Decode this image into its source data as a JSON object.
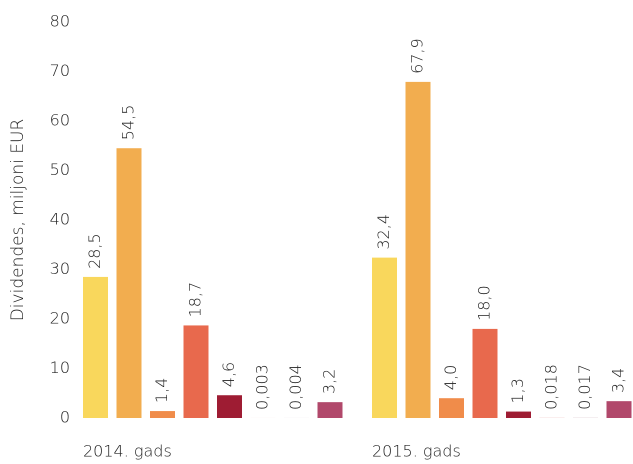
{
  "chart_data": {
    "type": "bar",
    "ylabel": "Dividendes, miljoni EUR",
    "categories": [
      "2014. gads",
      "2015. gads"
    ],
    "series": [
      {
        "color": "#f9d75c",
        "values": [
          28.5,
          32.4
        ],
        "value_labels": [
          "28,5",
          "32,4"
        ]
      },
      {
        "color": "#f2ad4f",
        "values": [
          54.5,
          67.9
        ],
        "value_labels": [
          "54,5",
          "67,9"
        ]
      },
      {
        "color": "#f08c4a",
        "values": [
          1.4,
          4.0
        ],
        "value_labels": [
          "1,4",
          "4,0"
        ]
      },
      {
        "color": "#e8694d",
        "values": [
          18.7,
          18.0
        ],
        "value_labels": [
          "18,7",
          "18,0"
        ]
      },
      {
        "color": "#9e1c33",
        "values": [
          4.6,
          1.3
        ],
        "value_labels": [
          "4,6",
          "1,3"
        ]
      },
      {
        "color": "#c43d3d",
        "values": [
          0.003,
          0.018
        ],
        "value_labels": [
          "0,003",
          "0,018"
        ]
      },
      {
        "color": "#7a2a4e",
        "values": [
          0.004,
          0.017
        ],
        "value_labels": [
          "0,004",
          "0,017"
        ]
      },
      {
        "color": "#b1486b",
        "values": [
          3.2,
          3.4
        ],
        "value_labels": [
          "3,2",
          "3,4"
        ]
      }
    ],
    "ylim": [
      0,
      80
    ],
    "yticks": [
      0,
      10,
      20,
      30,
      40,
      50,
      60,
      70,
      80
    ],
    "grid": false
  }
}
